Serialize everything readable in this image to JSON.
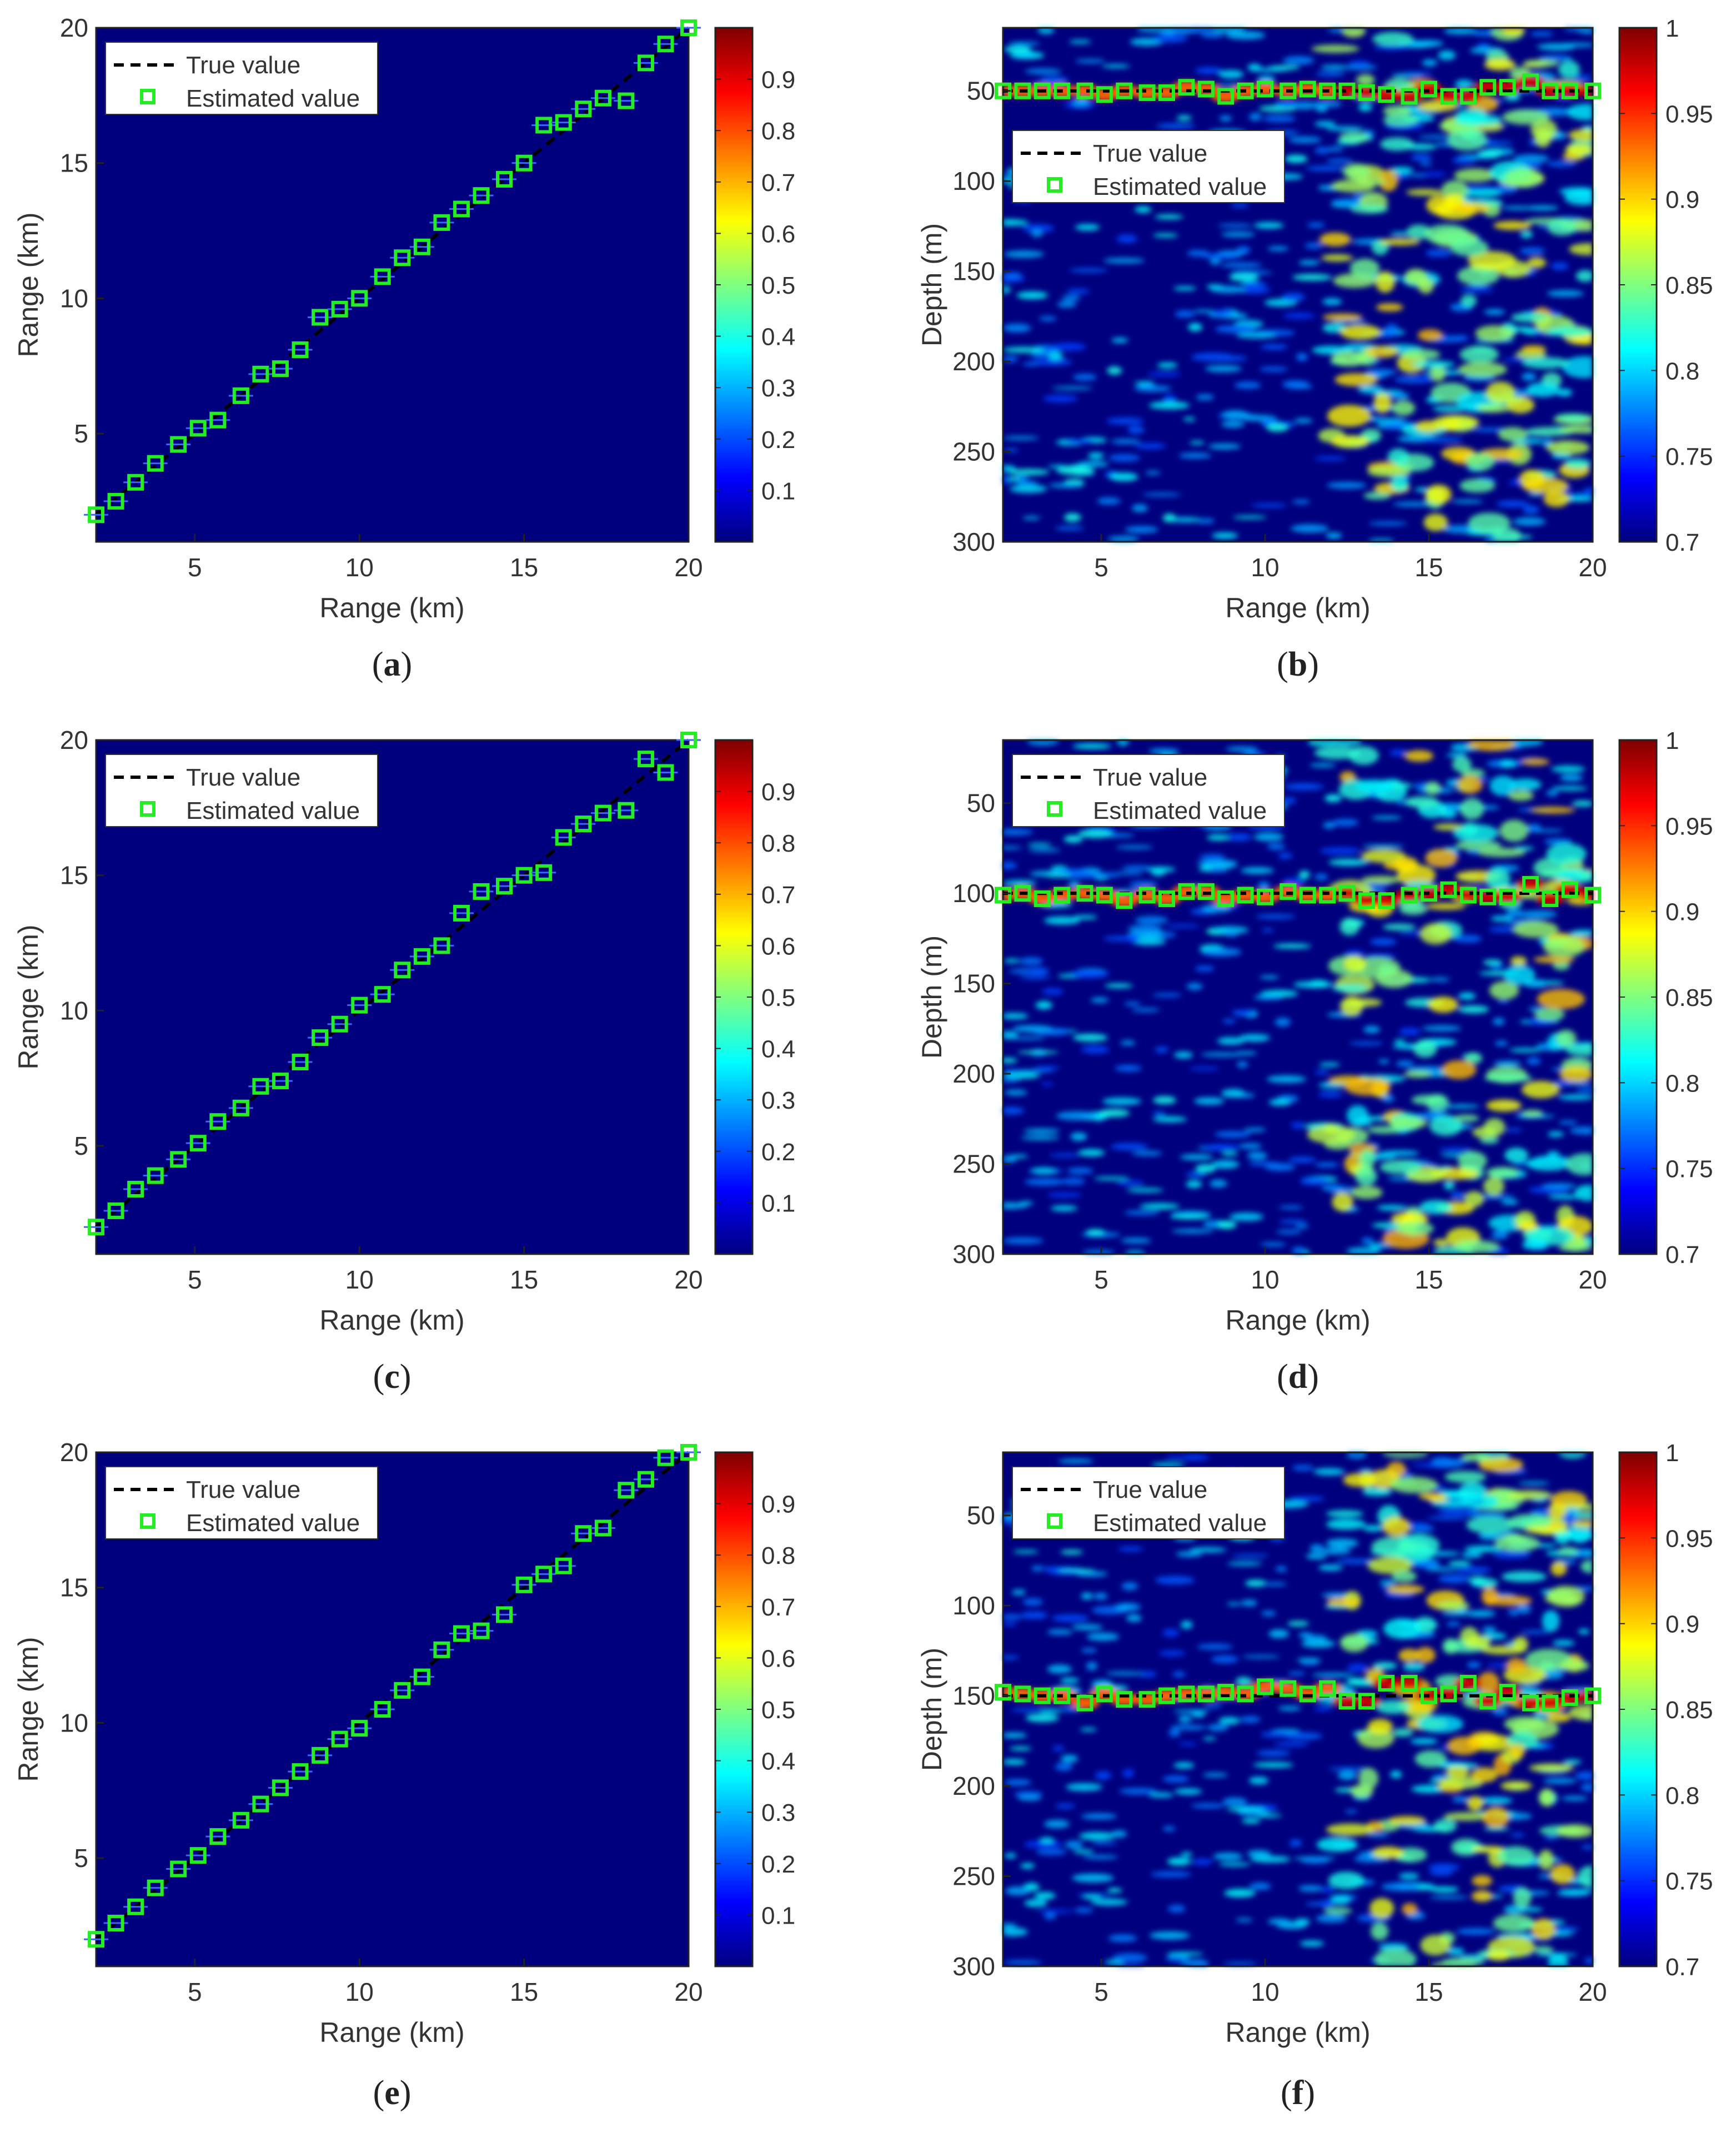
{
  "colors": {
    "frame": "#222222",
    "text": "#333333",
    "marker": "#22ee22",
    "truth": "#000000",
    "bg_low": "#00007f"
  },
  "chart_data": [
    {
      "id": "a",
      "type": "heatmap",
      "panel_label": "a",
      "xlabel": "Range (km)",
      "ylabel": "Range (km)",
      "xlim": [
        2,
        20
      ],
      "ylim": [
        1,
        20
      ],
      "y_reversed": false,
      "xticks": [
        5,
        10,
        15,
        20
      ],
      "xtick_labels": [
        "5",
        "10",
        "15",
        "20"
      ],
      "yticks": [
        5,
        10,
        15,
        20
      ],
      "ytick_labels": [
        "5",
        "10",
        "15",
        "20"
      ],
      "colorbar": {
        "min": 0,
        "max": 1,
        "ticks": [
          0.1,
          0.2,
          0.3,
          0.4,
          0.5,
          0.6,
          0.7,
          0.8,
          0.9
        ],
        "tick_labels": [
          "0.1",
          "0.2",
          "0.3",
          "0.4",
          "0.5",
          "0.6",
          "0.7",
          "0.8",
          "0.9"
        ]
      },
      "legend": {
        "location": "top-left",
        "entries": [
          "True value",
          "Estimated value"
        ]
      },
      "true_value": {
        "x": [
          2,
          20
        ],
        "y": [
          2,
          20
        ]
      },
      "estimated": {
        "x": [
          2.0,
          2.6,
          3.2,
          3.8,
          4.5,
          5.1,
          5.7,
          6.4,
          7.0,
          7.6,
          8.2,
          8.8,
          9.4,
          10.0,
          10.7,
          11.3,
          11.9,
          12.5,
          13.1,
          13.7,
          14.4,
          15.0,
          15.6,
          16.2,
          16.8,
          17.4,
          18.1,
          18.7,
          19.3,
          20.0
        ],
        "y": [
          2.0,
          2.5,
          3.2,
          3.9,
          4.6,
          5.2,
          5.5,
          6.4,
          7.2,
          7.4,
          8.1,
          9.3,
          9.6,
          10.0,
          10.8,
          11.5,
          11.9,
          12.8,
          13.3,
          13.8,
          14.4,
          15.0,
          16.4,
          16.5,
          17.0,
          17.4,
          17.3,
          18.7,
          19.4,
          20.0
        ]
      }
    },
    {
      "id": "b",
      "type": "heatmap",
      "panel_label": "b",
      "xlabel": "Range (km)",
      "ylabel": "Depth (m)",
      "xlim": [
        2,
        20
      ],
      "ylim": [
        15,
        300
      ],
      "y_reversed": true,
      "xticks": [
        5,
        10,
        15,
        20
      ],
      "xtick_labels": [
        "5",
        "10",
        "15",
        "20"
      ],
      "yticks": [
        50,
        100,
        150,
        200,
        250,
        300
      ],
      "ytick_labels": [
        "50",
        "100",
        "150",
        "200",
        "250",
        "300"
      ],
      "colorbar": {
        "min": 0.7,
        "max": 1.0,
        "ticks": [
          0.7,
          0.75,
          0.8,
          0.85,
          0.9,
          0.95,
          1.0
        ],
        "tick_labels": [
          "0.7",
          "0.75",
          "0.8",
          "0.85",
          "0.9",
          "0.95",
          "1"
        ]
      },
      "legend": {
        "location": "upper-left, below source line",
        "entries": [
          "True value",
          "Estimated value"
        ]
      },
      "true_depth": 50,
      "estimated": {
        "x": [
          2.0,
          2.6,
          3.2,
          3.8,
          4.5,
          5.1,
          5.7,
          6.4,
          7.0,
          7.6,
          8.2,
          8.8,
          9.4,
          10.0,
          10.7,
          11.3,
          11.9,
          12.5,
          13.1,
          13.7,
          14.4,
          15.0,
          15.6,
          16.2,
          16.8,
          17.4,
          18.1,
          18.7,
          19.3,
          20.0
        ],
        "y": [
          50,
          50,
          50,
          50,
          50,
          52,
          50,
          51,
          51,
          48,
          49,
          53,
          50,
          49,
          50,
          49,
          50,
          50,
          51,
          52,
          53,
          49,
          53,
          53,
          48,
          48,
          45,
          50,
          50,
          50
        ]
      }
    },
    {
      "id": "c",
      "type": "heatmap",
      "panel_label": "c",
      "xlabel": "Range (km)",
      "ylabel": "Range (km)",
      "xlim": [
        2,
        20
      ],
      "ylim": [
        1,
        20
      ],
      "y_reversed": false,
      "xticks": [
        5,
        10,
        15,
        20
      ],
      "xtick_labels": [
        "5",
        "10",
        "15",
        "20"
      ],
      "yticks": [
        5,
        10,
        15,
        20
      ],
      "ytick_labels": [
        "5",
        "10",
        "15",
        "20"
      ],
      "colorbar": {
        "min": 0,
        "max": 1,
        "ticks": [
          0.1,
          0.2,
          0.3,
          0.4,
          0.5,
          0.6,
          0.7,
          0.8,
          0.9
        ],
        "tick_labels": [
          "0.1",
          "0.2",
          "0.3",
          "0.4",
          "0.5",
          "0.6",
          "0.7",
          "0.8",
          "0.9"
        ]
      },
      "legend": {
        "location": "top-left",
        "entries": [
          "True value",
          "Estimated value"
        ]
      },
      "true_value": {
        "x": [
          2,
          20
        ],
        "y": [
          2,
          20
        ]
      },
      "estimated": {
        "x": [
          2.0,
          2.6,
          3.2,
          3.8,
          4.5,
          5.1,
          5.7,
          6.4,
          7.0,
          7.6,
          8.2,
          8.8,
          9.4,
          10.0,
          10.7,
          11.3,
          11.9,
          12.5,
          13.1,
          13.7,
          14.4,
          15.0,
          15.6,
          16.2,
          16.8,
          17.4,
          18.1,
          18.7,
          19.3,
          20.0
        ],
        "y": [
          2.0,
          2.6,
          3.4,
          3.9,
          4.5,
          5.1,
          5.9,
          6.4,
          7.2,
          7.4,
          8.1,
          9.0,
          9.5,
          10.2,
          10.6,
          11.5,
          12.0,
          12.4,
          13.6,
          14.4,
          14.6,
          15.0,
          15.1,
          16.4,
          16.9,
          17.3,
          17.4,
          19.3,
          18.8,
          20.0
        ]
      }
    },
    {
      "id": "d",
      "type": "heatmap",
      "panel_label": "d",
      "xlabel": "Range (km)",
      "ylabel": "Depth (m)",
      "xlim": [
        2,
        20
      ],
      "ylim": [
        15,
        300
      ],
      "y_reversed": true,
      "xticks": [
        5,
        10,
        15,
        20
      ],
      "xtick_labels": [
        "5",
        "10",
        "15",
        "20"
      ],
      "yticks": [
        50,
        100,
        150,
        200,
        250,
        300
      ],
      "ytick_labels": [
        "50",
        "100",
        "150",
        "200",
        "250",
        "300"
      ],
      "colorbar": {
        "min": 0.7,
        "max": 1.0,
        "ticks": [
          0.7,
          0.75,
          0.8,
          0.85,
          0.9,
          0.95,
          1.0
        ],
        "tick_labels": [
          "0.7",
          "0.75",
          "0.8",
          "0.85",
          "0.9",
          "0.95",
          "1"
        ]
      },
      "legend": {
        "location": "top-left",
        "entries": [
          "True value",
          "Estimated value"
        ]
      },
      "true_depth": 100,
      "estimated": {
        "x": [
          2.0,
          2.6,
          3.2,
          3.8,
          4.5,
          5.1,
          5.7,
          6.4,
          7.0,
          7.6,
          8.2,
          8.8,
          9.4,
          10.0,
          10.7,
          11.3,
          11.9,
          12.5,
          13.1,
          13.7,
          14.4,
          15.0,
          15.6,
          16.2,
          16.8,
          17.4,
          18.1,
          18.7,
          19.3,
          20.0
        ],
        "y": [
          101,
          100,
          103,
          101,
          100,
          101,
          104,
          101,
          103,
          99,
          99,
          103,
          101,
          102,
          99,
          101,
          101,
          100,
          104,
          104,
          101,
          100,
          98,
          101,
          102,
          102,
          95,
          103,
          98,
          101
        ]
      }
    },
    {
      "id": "e",
      "type": "heatmap",
      "panel_label": "e",
      "xlabel": "Range (km)",
      "ylabel": "Range (km)",
      "xlim": [
        2,
        20
      ],
      "ylim": [
        1,
        20
      ],
      "y_reversed": false,
      "xticks": [
        5,
        10,
        15,
        20
      ],
      "xtick_labels": [
        "5",
        "10",
        "15",
        "20"
      ],
      "yticks": [
        5,
        10,
        15,
        20
      ],
      "ytick_labels": [
        "5",
        "10",
        "15",
        "20"
      ],
      "colorbar": {
        "min": 0,
        "max": 1,
        "ticks": [
          0.1,
          0.2,
          0.3,
          0.4,
          0.5,
          0.6,
          0.7,
          0.8,
          0.9
        ],
        "tick_labels": [
          "0.1",
          "0.2",
          "0.3",
          "0.4",
          "0.5",
          "0.6",
          "0.7",
          "0.8",
          "0.9"
        ]
      },
      "legend": {
        "location": "top-left",
        "entries": [
          "True value",
          "Estimated value"
        ]
      },
      "true_value": {
        "x": [
          2,
          20
        ],
        "y": [
          2,
          20
        ]
      },
      "estimated": {
        "x": [
          2.0,
          2.6,
          3.2,
          3.8,
          4.5,
          5.1,
          5.7,
          6.4,
          7.0,
          7.6,
          8.2,
          8.8,
          9.4,
          10.0,
          10.7,
          11.3,
          11.9,
          12.5,
          13.1,
          13.7,
          14.4,
          15.0,
          15.6,
          16.2,
          16.8,
          17.4,
          18.1,
          18.7,
          19.3,
          20.0
        ],
        "y": [
          2.0,
          2.6,
          3.2,
          3.9,
          4.6,
          5.1,
          5.8,
          6.4,
          7.0,
          7.6,
          8.2,
          8.8,
          9.4,
          9.8,
          10.5,
          11.2,
          11.7,
          12.7,
          13.3,
          13.4,
          14.0,
          15.1,
          15.5,
          15.8,
          17.0,
          17.2,
          18.6,
          19.0,
          19.8,
          20.0
        ]
      }
    },
    {
      "id": "f",
      "type": "heatmap",
      "panel_label": "f",
      "xlabel": "Range (km)",
      "ylabel": "Depth (m)",
      "xlim": [
        2,
        20
      ],
      "ylim": [
        15,
        300
      ],
      "y_reversed": true,
      "xticks": [
        5,
        10,
        15,
        20
      ],
      "xtick_labels": [
        "5",
        "10",
        "15",
        "20"
      ],
      "yticks": [
        50,
        100,
        150,
        200,
        250,
        300
      ],
      "ytick_labels": [
        "50",
        "100",
        "150",
        "200",
        "250",
        "300"
      ],
      "colorbar": {
        "min": 0.7,
        "max": 1.0,
        "ticks": [
          0.7,
          0.75,
          0.8,
          0.85,
          0.9,
          0.95,
          1.0
        ],
        "tick_labels": [
          "0.7",
          "0.75",
          "0.8",
          "0.85",
          "0.9",
          "0.95",
          "1"
        ]
      },
      "legend": {
        "location": "top-left",
        "entries": [
          "True value",
          "Estimated value"
        ]
      },
      "true_depth": 150,
      "estimated": {
        "x": [
          2.0,
          2.6,
          3.2,
          3.8,
          4.5,
          5.1,
          5.7,
          6.4,
          7.0,
          7.6,
          8.2,
          8.8,
          9.4,
          10.0,
          10.7,
          11.3,
          11.9,
          12.5,
          13.1,
          13.7,
          14.4,
          15.0,
          15.6,
          16.2,
          16.8,
          17.4,
          18.1,
          18.7,
          19.3,
          20.0
        ],
        "y": [
          148,
          149,
          150,
          150,
          154,
          149,
          152,
          152,
          150,
          149,
          149,
          148,
          149,
          145,
          146,
          149,
          146,
          153,
          153,
          143,
          143,
          150,
          149,
          143,
          153,
          148,
          154,
          154,
          151,
          150
        ]
      }
    }
  ]
}
